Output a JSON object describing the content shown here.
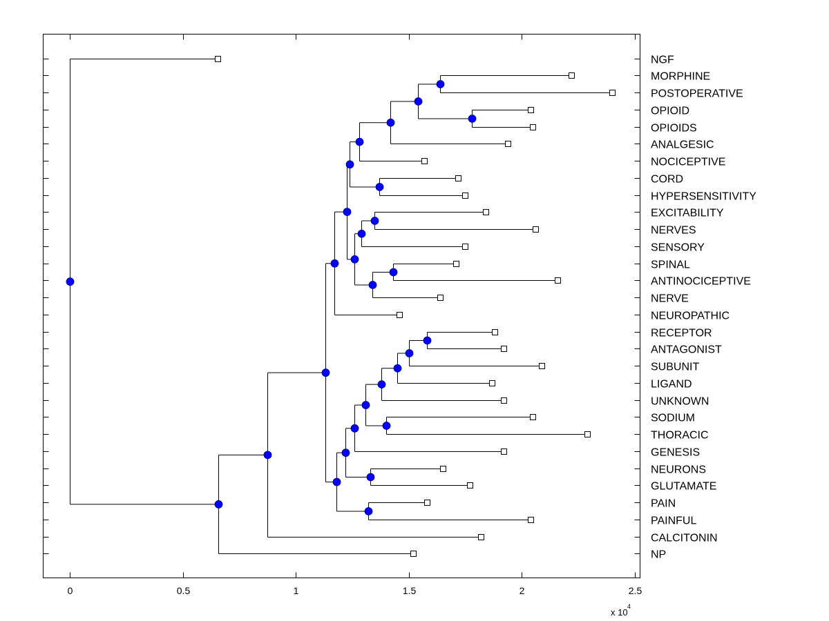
{
  "chart_data": {
    "type": "dendrogram",
    "title": "",
    "xlabel": "",
    "ylabel": "",
    "x_multiplier_label": "x 10",
    "x_multiplier_exponent": "4",
    "xlim": [
      -0.12,
      2.53
    ],
    "xticks": [
      0,
      0.5,
      1,
      1.5,
      2,
      2.5
    ],
    "xtick_labels": [
      "0",
      "0.5",
      "1",
      "1.5",
      "2",
      "2.5"
    ],
    "grid": false,
    "node_color": "#0000ff",
    "leaves": [
      "NGF",
      "MORPHINE",
      "POSTOPERATIVE",
      "OPIOID",
      "OPIOIDS",
      "ANALGESIC",
      "NOCICEPTIVE",
      "CORD",
      "HYPERSENSITIVITY",
      "EXCITABILITY",
      "NERVES",
      "SENSORY",
      "SPINAL",
      "ANTINOCICEPTIVE",
      "NERVE",
      "NEUROPATHIC",
      "RECEPTOR",
      "ANTAGONIST",
      "SUBUNIT",
      "LIGAND",
      "UNKNOWN",
      "SODIUM",
      "THORACIC",
      "GENESIS",
      "NEURONS",
      "GLUTAMATE",
      "PAIN",
      "PAINFUL",
      "CALCITONIN",
      "NP"
    ],
    "tree": {
      "x": 0,
      "children": [
        {
          "leaf": "NGF",
          "x": 0.654
        },
        {
          "x": 0.656,
          "children": [
            {
              "x": 0.875,
              "children": [
                {
                  "x": 1.13,
                  "children": [
                    {
                      "x": 1.17,
                      "children": [
                        {
                          "x": 1.225,
                          "children": [
                            {
                              "x": 1.24,
                              "children": [
                                {
                                  "x": 1.28,
                                  "children": [
                                    {
                                      "x": 1.42,
                                      "children": [
                                        {
                                          "x": 1.54,
                                          "children": [
                                            {
                                              "x": 1.64,
                                              "children": [
                                                {
                                                  "leaf": "MORPHINE",
                                                  "x": 2.22
                                                },
                                                {
                                                  "leaf": "POSTOPERATIVE",
                                                  "x": 2.4
                                                }
                                              ]
                                            },
                                            {
                                              "x": 1.78,
                                              "children": [
                                                {
                                                  "leaf": "OPIOID",
                                                  "x": 2.04
                                                },
                                                {
                                                  "leaf": "OPIOIDS",
                                                  "x": 2.05
                                                }
                                              ]
                                            }
                                          ]
                                        },
                                        {
                                          "leaf": "ANALGESIC",
                                          "x": 1.94
                                        }
                                      ]
                                    },
                                    {
                                      "leaf": "NOCICEPTIVE",
                                      "x": 1.57
                                    }
                                  ]
                                },
                                {
                                  "x": 1.37,
                                  "children": [
                                    {
                                      "leaf": "CORD",
                                      "x": 1.72
                                    },
                                    {
                                      "leaf": "HYPERSENSITIVITY",
                                      "x": 1.75
                                    }
                                  ]
                                }
                              ]
                            },
                            {
                              "x": 1.26,
                              "children": [
                                {
                                  "x": 1.29,
                                  "children": [
                                    {
                                      "x": 1.35,
                                      "children": [
                                        {
                                          "leaf": "EXCITABILITY",
                                          "x": 1.84
                                        },
                                        {
                                          "leaf": "NERVES",
                                          "x": 2.06
                                        }
                                      ]
                                    },
                                    {
                                      "leaf": "SENSORY",
                                      "x": 1.75
                                    }
                                  ]
                                },
                                {
                                  "x": 1.34,
                                  "children": [
                                    {
                                      "x": 1.43,
                                      "children": [
                                        {
                                          "leaf": "SPINAL",
                                          "x": 1.71
                                        },
                                        {
                                          "leaf": "ANTINOCICEPTIVE",
                                          "x": 2.16
                                        }
                                      ]
                                    },
                                    {
                                      "leaf": "NERVE",
                                      "x": 1.64
                                    }
                                  ]
                                }
                              ]
                            }
                          ]
                        },
                        {
                          "leaf": "NEUROPATHIC",
                          "x": 1.46
                        }
                      ]
                    },
                    {
                      "x": 1.18,
                      "children": [
                        {
                          "x": 1.22,
                          "children": [
                            {
                              "x": 1.26,
                              "children": [
                                {
                                  "x": 1.31,
                                  "children": [
                                    {
                                      "x": 1.38,
                                      "children": [
                                        {
                                          "x": 1.45,
                                          "children": [
                                            {
                                              "x": 1.5,
                                              "children": [
                                                {
                                                  "x": 1.58,
                                                  "children": [
                                                    {
                                                      "leaf": "RECEPTOR",
                                                      "x": 1.88
                                                    },
                                                    {
                                                      "leaf": "ANTAGONIST",
                                                      "x": 1.92
                                                    }
                                                  ]
                                                },
                                                {
                                                  "leaf": "SUBUNIT",
                                                  "x": 2.09
                                                }
                                              ]
                                            },
                                            {
                                              "leaf": "LIGAND",
                                              "x": 1.87
                                            }
                                          ]
                                        },
                                        {
                                          "leaf": "UNKNOWN",
                                          "x": 1.92
                                        }
                                      ]
                                    },
                                    {
                                      "x": 1.4,
                                      "children": [
                                        {
                                          "leaf": "SODIUM",
                                          "x": 2.05
                                        },
                                        {
                                          "leaf": "THORACIC",
                                          "x": 2.29
                                        }
                                      ]
                                    }
                                  ]
                                },
                                {
                                  "leaf": "GENESIS",
                                  "x": 1.92
                                }
                              ]
                            },
                            {
                              "x": 1.33,
                              "children": [
                                {
                                  "leaf": "NEURONS",
                                  "x": 1.65
                                },
                                {
                                  "leaf": "GLUTAMATE",
                                  "x": 1.77
                                }
                              ]
                            }
                          ]
                        },
                        {
                          "x": 1.32,
                          "children": [
                            {
                              "leaf": "PAIN",
                              "x": 1.58
                            },
                            {
                              "leaf": "PAINFUL",
                              "x": 2.04
                            }
                          ]
                        }
                      ]
                    }
                  ]
                },
                {
                  "leaf": "CALCITONIN",
                  "x": 1.82
                }
              ]
            },
            {
              "leaf": "NP",
              "x": 1.52
            }
          ]
        }
      ]
    }
  }
}
